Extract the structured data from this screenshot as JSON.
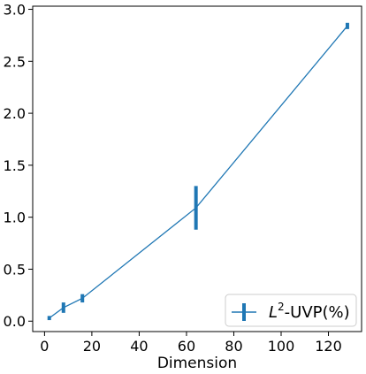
{
  "chart_data": {
    "type": "line",
    "title": "",
    "xlabel": "Dimension",
    "ylabel": "",
    "xlim": [
      -5,
      134
    ],
    "ylim": [
      -0.1,
      3.03
    ],
    "x_ticks": [
      0,
      20,
      40,
      60,
      80,
      100,
      120
    ],
    "y_ticks": [
      0.0,
      0.5,
      1.0,
      1.5,
      2.0,
      2.5,
      3.0
    ],
    "x_tick_labels": [
      "0",
      "20",
      "40",
      "60",
      "80",
      "100",
      "120"
    ],
    "y_tick_labels": [
      "0.0",
      "0.5",
      "1.0",
      "1.5",
      "2.0",
      "2.5",
      "3.0"
    ],
    "grid": false,
    "legend_position": "lower-right",
    "series": [
      {
        "name": "-UVP(%)",
        "legend_prefix": "L",
        "legend_superscript": "2",
        "color": "#1f77b4",
        "x": [
          2,
          8,
          16,
          64,
          128
        ],
        "y": [
          0.03,
          0.13,
          0.22,
          1.09,
          2.84
        ],
        "yerr": [
          0.02,
          0.05,
          0.04,
          0.21,
          0.03
        ]
      }
    ]
  }
}
